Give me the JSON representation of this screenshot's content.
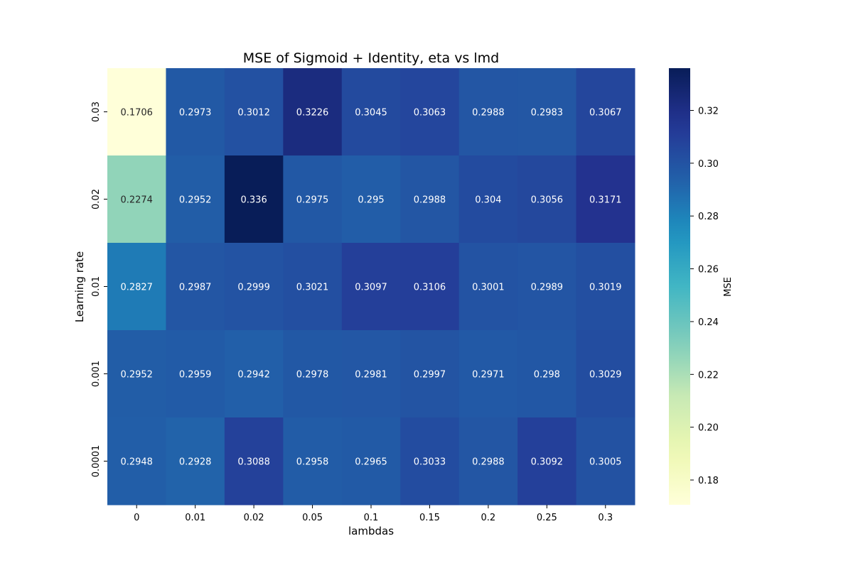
{
  "chart_data": {
    "type": "heatmap",
    "title": "MSE of Sigmoid + Identity, eta vs lmd",
    "xlabel": "lambdas",
    "ylabel": "Learning rate",
    "x_categories": [
      "0",
      "0.01",
      "0.02",
      "0.05",
      "0.1",
      "0.15",
      "0.2",
      "0.25",
      "0.3"
    ],
    "y_categories": [
      "0.03",
      "0.02",
      "0.01",
      "0.001",
      "0.0001"
    ],
    "values": [
      [
        0.1706,
        0.2973,
        0.3012,
        0.3226,
        0.3045,
        0.3063,
        0.2988,
        0.2983,
        0.3067
      ],
      [
        0.2274,
        0.2952,
        0.336,
        0.2975,
        0.295,
        0.2988,
        0.304,
        0.3056,
        0.3171
      ],
      [
        0.2827,
        0.2987,
        0.2999,
        0.3021,
        0.3097,
        0.3106,
        0.3001,
        0.2989,
        0.3019
      ],
      [
        0.2952,
        0.2959,
        0.2942,
        0.2978,
        0.2981,
        0.2997,
        0.2971,
        0.298,
        0.3029
      ],
      [
        0.2948,
        0.2928,
        0.3088,
        0.2958,
        0.2965,
        0.3033,
        0.2988,
        0.3092,
        0.3005
      ]
    ],
    "cell_labels": [
      [
        "0.1706",
        "0.2973",
        "0.3012",
        "0.3226",
        "0.3045",
        "0.3063",
        "0.2988",
        "0.2983",
        "0.3067"
      ],
      [
        "0.2274",
        "0.2952",
        "0.336",
        "0.2975",
        "0.295",
        "0.2988",
        "0.304",
        "0.3056",
        "0.3171"
      ],
      [
        "0.2827",
        "0.2987",
        "0.2999",
        "0.3021",
        "0.3097",
        "0.3106",
        "0.3001",
        "0.2989",
        "0.3019"
      ],
      [
        "0.2952",
        "0.2959",
        "0.2942",
        "0.2978",
        "0.2981",
        "0.2997",
        "0.2971",
        "0.298",
        "0.3029"
      ],
      [
        "0.2948",
        "0.2928",
        "0.3088",
        "0.2958",
        "0.2965",
        "0.3033",
        "0.2988",
        "0.3092",
        "0.3005"
      ]
    ],
    "colorbar": {
      "label": "MSE",
      "colormap": "YlGnBu",
      "range": [
        0.1706,
        0.336
      ],
      "ticks": [
        0.18,
        0.2,
        0.22,
        0.24,
        0.26,
        0.28,
        0.3,
        0.32
      ],
      "tick_labels": [
        "0.18",
        "0.20",
        "0.22",
        "0.24",
        "0.26",
        "0.28",
        "0.30",
        "0.32"
      ]
    }
  }
}
